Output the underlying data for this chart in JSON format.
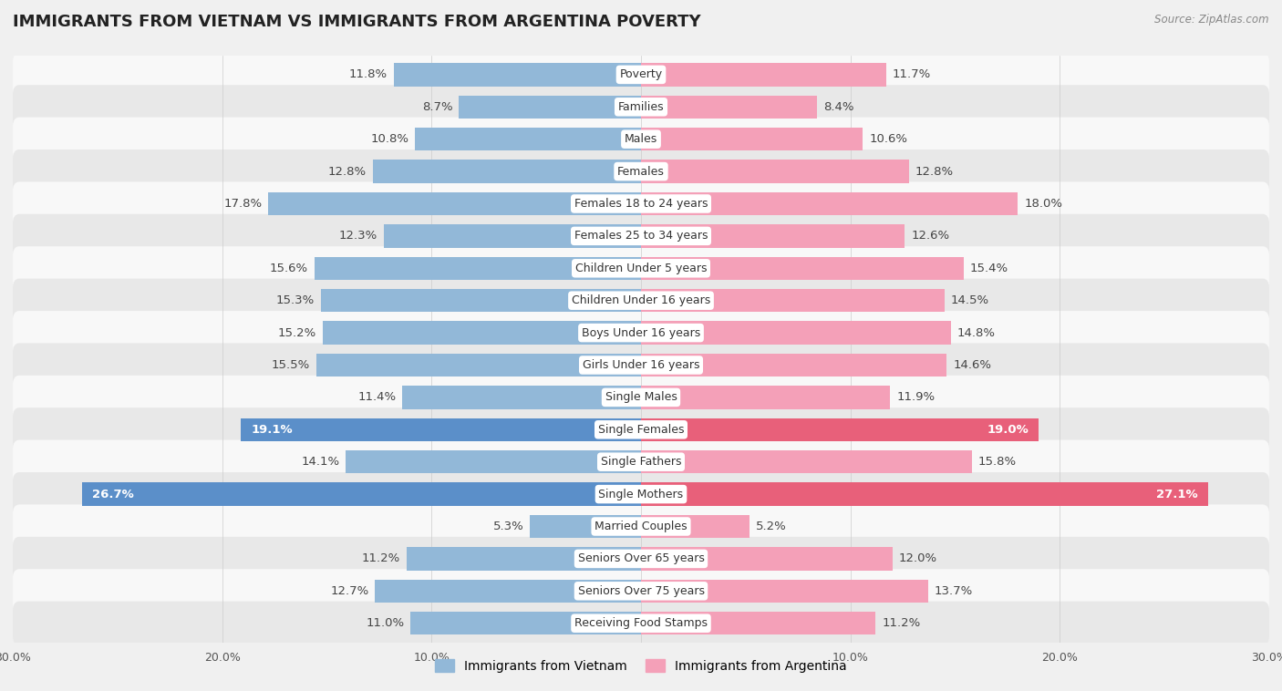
{
  "title": "IMMIGRANTS FROM VIETNAM VS IMMIGRANTS FROM ARGENTINA POVERTY",
  "source": "Source: ZipAtlas.com",
  "categories": [
    "Poverty",
    "Families",
    "Males",
    "Females",
    "Females 18 to 24 years",
    "Females 25 to 34 years",
    "Children Under 5 years",
    "Children Under 16 years",
    "Boys Under 16 years",
    "Girls Under 16 years",
    "Single Males",
    "Single Females",
    "Single Fathers",
    "Single Mothers",
    "Married Couples",
    "Seniors Over 65 years",
    "Seniors Over 75 years",
    "Receiving Food Stamps"
  ],
  "vietnam_values": [
    11.8,
    8.7,
    10.8,
    12.8,
    17.8,
    12.3,
    15.6,
    15.3,
    15.2,
    15.5,
    11.4,
    19.1,
    14.1,
    26.7,
    5.3,
    11.2,
    12.7,
    11.0
  ],
  "argentina_values": [
    11.7,
    8.4,
    10.6,
    12.8,
    18.0,
    12.6,
    15.4,
    14.5,
    14.8,
    14.6,
    11.9,
    19.0,
    15.8,
    27.1,
    5.2,
    12.0,
    13.7,
    11.2
  ],
  "vietnam_color": "#92b8d8",
  "argentina_color": "#f4a0b8",
  "highlight_vietnam_color": "#5b8fc9",
  "highlight_argentina_color": "#e8607a",
  "highlight_rows": [
    11,
    13
  ],
  "xlim": 30.0,
  "background_color": "#f0f0f0",
  "row_bg_light": "#f8f8f8",
  "row_bg_dark": "#e8e8e8",
  "bar_height": 0.72,
  "label_fontsize": 9.5,
  "category_fontsize": 9,
  "title_fontsize": 13,
  "legend_vietnam": "Immigrants from Vietnam",
  "legend_argentina": "Immigrants from Argentina"
}
